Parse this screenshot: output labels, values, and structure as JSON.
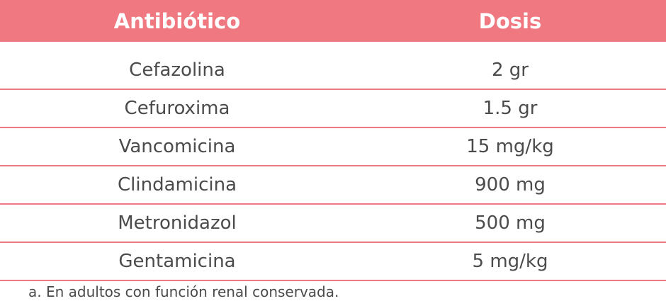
{
  "table": {
    "headers": [
      "Antibiótico",
      "Dosis"
    ],
    "rows": [
      [
        "Cefazolina",
        "2 gr"
      ],
      [
        "Cefuroxima",
        "1.5 gr"
      ],
      [
        "Vancomicina",
        "15 mg/kg"
      ],
      [
        "Clindamicina",
        "900 mg"
      ],
      [
        "Metronidazol",
        "500 mg"
      ],
      [
        "Gentamicina",
        "5 mg/kg"
      ]
    ]
  },
  "footnote": "a. En adultos con función renal conservada.",
  "colors": {
    "header_bg": "#f07880",
    "header_text": "#ffffff",
    "rule": "#f07880",
    "body_text": "#4b4b4b"
  }
}
